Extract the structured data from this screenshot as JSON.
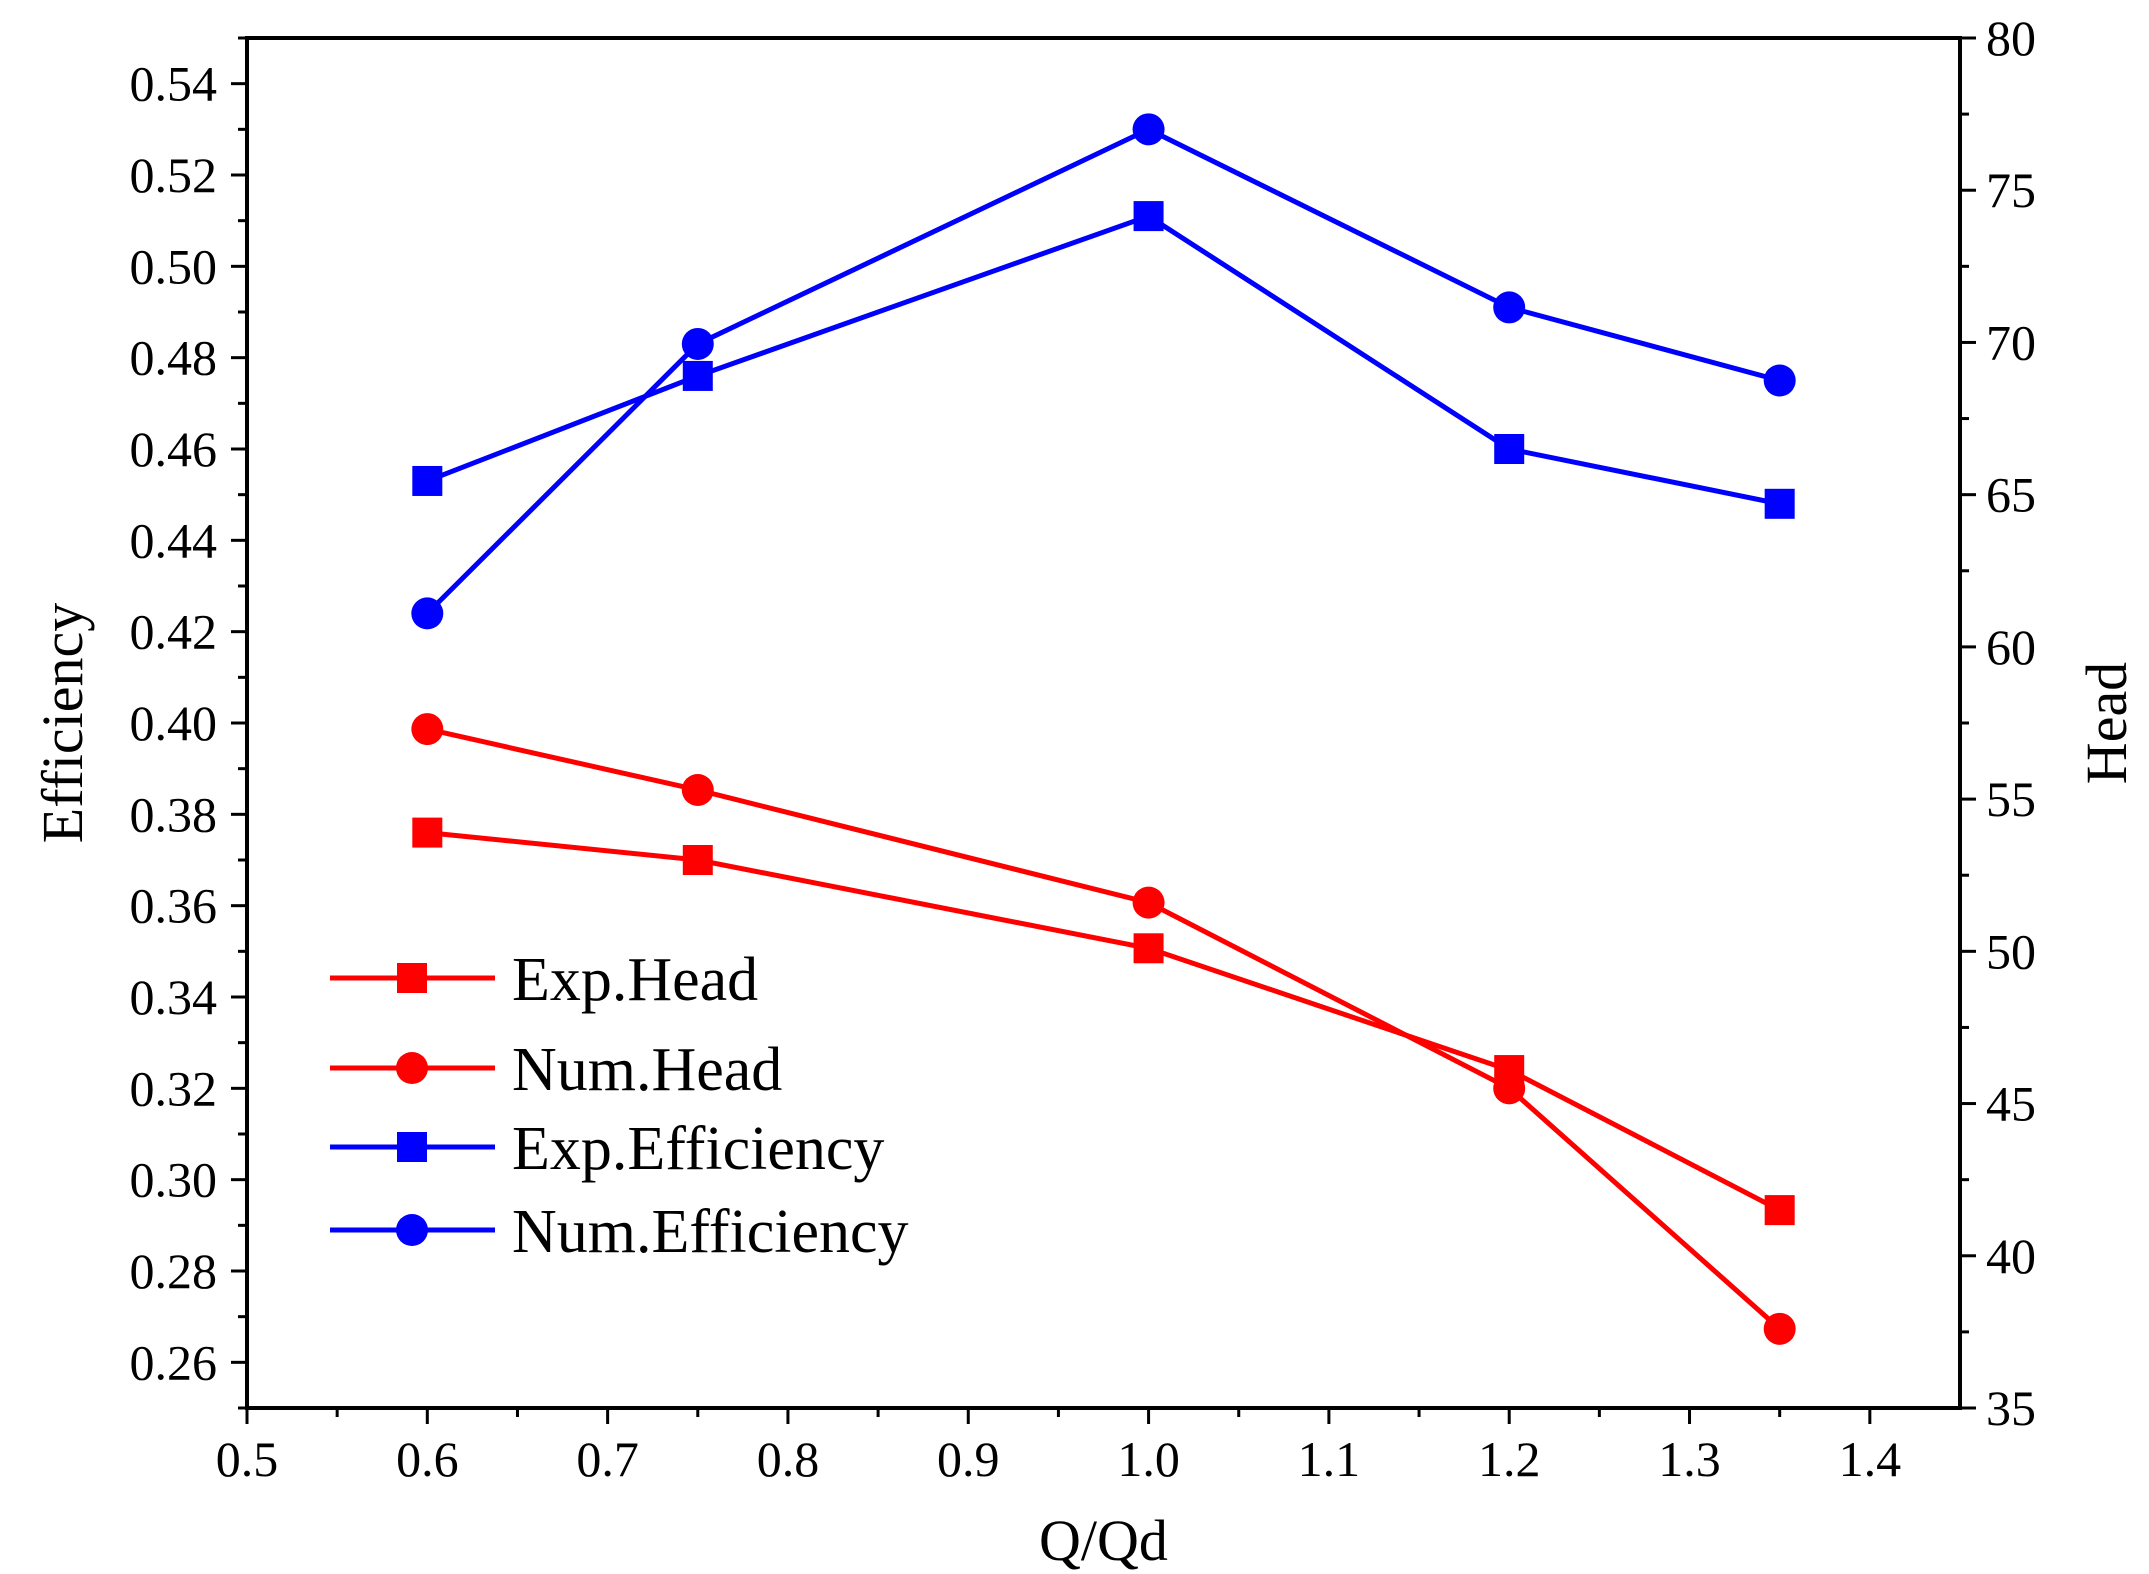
{
  "chart_data": {
    "type": "line",
    "xlabel": "Q/Qd",
    "ylabel_left": "Efficiency",
    "ylabel_right": "Head",
    "xlim": [
      0.5,
      1.45
    ],
    "ylim_left": [
      0.25,
      0.55
    ],
    "ylim_right": [
      35,
      80
    ],
    "x_ticks": [
      0.5,
      0.6,
      0.7,
      0.8,
      0.9,
      1.0,
      1.1,
      1.2,
      1.3,
      1.4
    ],
    "x_tick_labels": [
      "0.5",
      "0.6",
      "0.7",
      "0.8",
      "0.9",
      "1.0",
      "1.1",
      "1.2",
      "1.3",
      "1.4"
    ],
    "y_left_ticks": [
      0.26,
      0.28,
      0.3,
      0.32,
      0.34,
      0.36,
      0.38,
      0.4,
      0.42,
      0.44,
      0.46,
      0.48,
      0.5,
      0.52,
      0.54
    ],
    "y_left_tick_labels": [
      "0.26",
      "0.28",
      "0.30",
      "0.32",
      "0.34",
      "0.36",
      "0.38",
      "0.40",
      "0.42",
      "0.44",
      "0.46",
      "0.48",
      "0.50",
      "0.52",
      "0.54"
    ],
    "y_right_ticks": [
      35,
      40,
      45,
      50,
      55,
      60,
      65,
      70,
      75,
      80
    ],
    "y_right_tick_labels": [
      "35",
      "40",
      "45",
      "50",
      "55",
      "60",
      "65",
      "70",
      "75",
      "80"
    ],
    "grid": false,
    "legend_position": "bottom-left",
    "series": [
      {
        "name": "Exp.Head",
        "axis": "right",
        "marker": "square",
        "color": "#ff0000",
        "x": [
          0.6,
          0.75,
          1.0,
          1.2,
          1.35
        ],
        "y": [
          53.9,
          53.0,
          50.1,
          46.1,
          41.5
        ]
      },
      {
        "name": "Num.Head",
        "axis": "right",
        "marker": "circle",
        "color": "#ff0000",
        "x": [
          0.6,
          0.75,
          1.0,
          1.2,
          1.35
        ],
        "y": [
          57.3,
          55.3,
          51.6,
          45.5,
          37.6
        ]
      },
      {
        "name": "Exp.Efficiency",
        "axis": "left",
        "marker": "square",
        "color": "#0000ff",
        "x": [
          0.6,
          0.75,
          1.0,
          1.2,
          1.35
        ],
        "y": [
          0.453,
          0.476,
          0.511,
          0.46,
          0.448
        ]
      },
      {
        "name": "Num.Efficiency",
        "axis": "left",
        "marker": "circle",
        "color": "#0000ff",
        "x": [
          0.6,
          0.75,
          1.0,
          1.2,
          1.35
        ],
        "y": [
          0.424,
          0.483,
          0.53,
          0.491,
          0.475
        ]
      }
    ]
  }
}
